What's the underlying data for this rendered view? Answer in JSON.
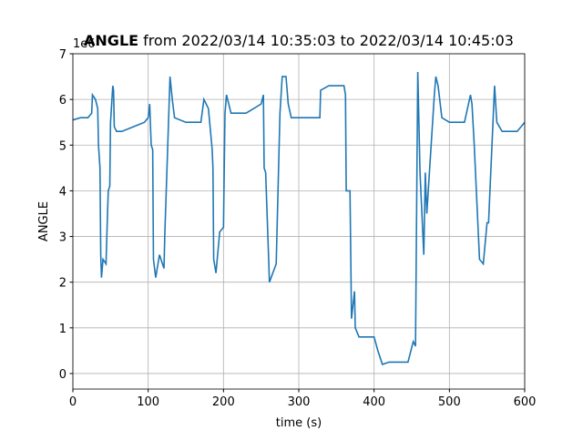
{
  "chart_data": {
    "type": "line",
    "title_bold": "ANGLE",
    "title": "from 2022/03/14 10:35:03 to 2022/03/14 10:45:03",
    "offset_text": "1e6",
    "xlabel": "time (s)",
    "ylabel": "ANGLE",
    "xlim": [
      0,
      600
    ],
    "ylim": [
      -0.34,
      7
    ],
    "xticks": [
      0,
      100,
      200,
      300,
      400,
      500,
      600
    ],
    "yticks": [
      0,
      1,
      2,
      3,
      4,
      5,
      6,
      7
    ],
    "grid": true,
    "series": [
      {
        "name": "ANGLE",
        "color": "#1f77b4",
        "x": [
          0,
          10,
          20,
          25,
          26,
          30,
          33,
          34,
          36,
          37,
          38,
          40,
          44,
          46,
          47,
          49,
          50,
          53,
          54,
          55,
          58,
          65,
          80,
          95,
          100,
          102,
          104,
          106,
          107,
          110,
          115,
          121,
          122,
          124,
          126,
          129,
          132,
          135,
          150,
          170,
          174,
          180,
          185,
          186,
          187,
          190,
          195,
          200,
          202,
          204,
          210,
          230,
          250,
          253,
          254,
          256,
          260,
          261,
          270,
          275,
          278,
          283,
          286,
          290,
          310,
          328,
          329,
          340,
          360,
          362,
          363,
          365,
          368,
          370,
          374,
          375,
          380,
          400,
          405,
          411,
          420,
          445,
          452,
          455,
          458,
          461,
          466,
          468,
          470,
          480,
          482,
          485,
          490,
          500,
          520,
          528,
          530,
          533,
          540,
          545,
          550,
          552,
          560,
          563,
          570,
          590,
          600
        ],
        "values": [
          5.55,
          5.6,
          5.6,
          5.7,
          6.1,
          6.0,
          5.8,
          5.0,
          4.5,
          2.6,
          2.1,
          2.5,
          2.4,
          3.5,
          4.0,
          4.1,
          5.5,
          6.3,
          6.2,
          5.4,
          5.3,
          5.3,
          5.4,
          5.5,
          5.6,
          5.9,
          5.0,
          4.9,
          2.5,
          2.1,
          2.6,
          2.3,
          3.0,
          4.0,
          5.0,
          6.5,
          6.0,
          5.6,
          5.5,
          5.5,
          6.0,
          5.8,
          4.9,
          4.5,
          2.5,
          2.2,
          3.1,
          3.2,
          5.7,
          6.1,
          5.7,
          5.7,
          5.9,
          6.1,
          4.5,
          4.4,
          2.5,
          2.0,
          2.4,
          5.7,
          6.5,
          6.5,
          5.9,
          5.6,
          5.6,
          5.6,
          6.2,
          6.3,
          6.3,
          6.1,
          4.0,
          4.0,
          4.0,
          1.2,
          1.8,
          1.0,
          0.8,
          0.8,
          0.5,
          0.2,
          0.25,
          0.25,
          0.7,
          0.6,
          6.6,
          4.4,
          2.6,
          4.4,
          3.5,
          6.1,
          6.5,
          6.3,
          5.6,
          5.5,
          5.5,
          6.1,
          5.9,
          5.0,
          2.5,
          2.4,
          3.3,
          3.3,
          6.3,
          5.5,
          5.3,
          5.3,
          5.5
        ]
      }
    ]
  }
}
